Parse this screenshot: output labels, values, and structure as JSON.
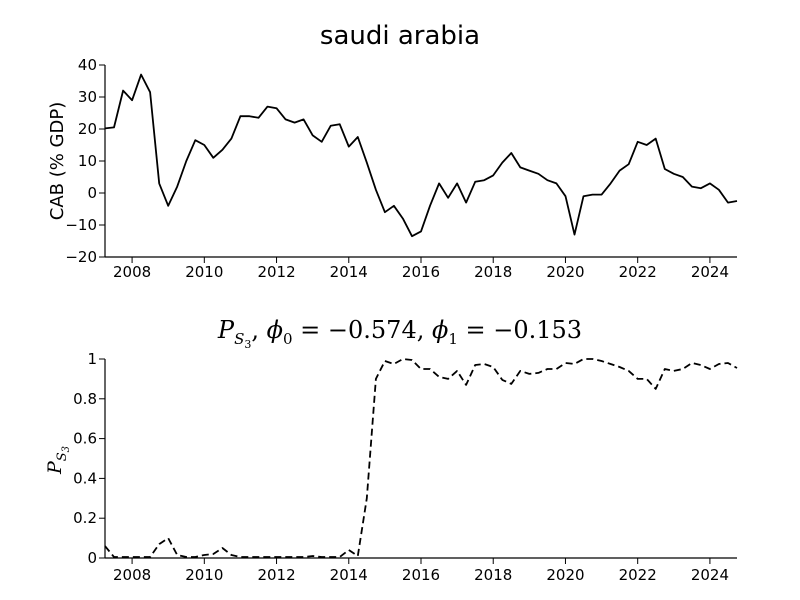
{
  "chart_data": [
    {
      "type": "line",
      "title": "saudi arabia",
      "xlabel": "",
      "ylabel": "CAB (% GDP)",
      "xlim": [
        2007.25,
        2024.75
      ],
      "ylim": [
        -20,
        40
      ],
      "grid": false,
      "x_ticks": [
        2008,
        2010,
        2012,
        2014,
        2016,
        2018,
        2020,
        2022,
        2024
      ],
      "y_ticks": [
        40,
        30,
        20,
        10,
        0,
        -10,
        -20
      ],
      "series": [
        {
          "line_style": "solid",
          "color": "#000000",
          "x": [
            2007.25,
            2007.5,
            2007.75,
            2008.0,
            2008.25,
            2008.5,
            2008.75,
            2009.0,
            2009.25,
            2009.5,
            2009.75,
            2010.0,
            2010.25,
            2010.5,
            2010.75,
            2011.0,
            2011.25,
            2011.5,
            2011.75,
            2012.0,
            2012.25,
            2012.5,
            2012.75,
            2013.0,
            2013.25,
            2013.5,
            2013.75,
            2014.0,
            2014.25,
            2014.5,
            2014.75,
            2015.0,
            2015.25,
            2015.5,
            2015.75,
            2016.0,
            2016.25,
            2016.5,
            2016.75,
            2017.0,
            2017.25,
            2017.5,
            2017.75,
            2018.0,
            2018.25,
            2018.5,
            2018.75,
            2019.0,
            2019.25,
            2019.5,
            2019.75,
            2020.0,
            2020.25,
            2020.5,
            2020.75,
            2021.0,
            2021.25,
            2021.5,
            2021.75,
            2022.0,
            2022.25,
            2022.5,
            2022.75,
            2023.0,
            2023.25,
            2023.5,
            2023.75,
            2024.0,
            2024.25,
            2024.5,
            2024.75
          ],
          "values": [
            20.2,
            20.5,
            32.0,
            29.0,
            37.0,
            31.5,
            3.0,
            -4.0,
            2.0,
            10.0,
            16.5,
            15.0,
            11.0,
            13.5,
            17.0,
            24.0,
            24.0,
            23.5,
            27.0,
            26.5,
            23.0,
            22.0,
            23.0,
            18.0,
            16.0,
            21.0,
            21.5,
            14.5,
            17.5,
            9.5,
            1.0,
            -6.0,
            -4.0,
            -8.0,
            -13.5,
            -12.0,
            -4.0,
            3.0,
            -1.5,
            3.0,
            -3.0,
            3.5,
            4.0,
            5.5,
            9.5,
            12.5,
            8.0,
            7.0,
            6.0,
            4.0,
            3.0,
            -1.0,
            -13.0,
            -1.0,
            -0.5,
            -0.5,
            3.0,
            7.0,
            9.0,
            16.0,
            15.0,
            17.0,
            7.5,
            6.0,
            5.0,
            2.0,
            1.5,
            3.0,
            1.0,
            -3.0,
            -2.5
          ]
        }
      ]
    },
    {
      "type": "line",
      "title": "P_{S_3}, φ_0 = −0.574, φ_1 = −0.153",
      "xlabel": "",
      "ylabel": "P_{S_3}",
      "xlim": [
        2007.25,
        2024.75
      ],
      "ylim": [
        0,
        1
      ],
      "grid": false,
      "x_ticks": [
        2008,
        2010,
        2012,
        2014,
        2016,
        2018,
        2020,
        2022,
        2024
      ],
      "y_ticks": [
        1,
        0.8,
        0.6,
        0.4,
        0.2,
        0
      ],
      "series": [
        {
          "line_style": "dashed",
          "color": "#000000",
          "x": [
            2007.25,
            2007.5,
            2007.75,
            2008.0,
            2008.25,
            2008.5,
            2008.75,
            2009.0,
            2009.25,
            2009.5,
            2009.75,
            2010.0,
            2010.25,
            2010.5,
            2010.75,
            2011.0,
            2011.25,
            2011.5,
            2011.75,
            2012.0,
            2012.25,
            2012.5,
            2012.75,
            2013.0,
            2013.25,
            2013.5,
            2013.75,
            2014.0,
            2014.25,
            2014.5,
            2014.75,
            2015.0,
            2015.25,
            2015.5,
            2015.75,
            2016.0,
            2016.25,
            2016.5,
            2016.75,
            2017.0,
            2017.25,
            2017.5,
            2017.75,
            2018.0,
            2018.25,
            2018.5,
            2018.75,
            2019.0,
            2019.25,
            2019.5,
            2019.75,
            2020.0,
            2020.25,
            2020.5,
            2020.75,
            2021.0,
            2021.25,
            2021.5,
            2021.75,
            2022.0,
            2022.25,
            2022.5,
            2022.75,
            2023.0,
            2023.25,
            2023.5,
            2023.75,
            2024.0,
            2024.25,
            2024.5,
            2024.75
          ],
          "values": [
            0.06,
            0.005,
            0.005,
            0.005,
            0.005,
            0.005,
            0.07,
            0.1,
            0.015,
            0.005,
            0.005,
            0.015,
            0.02,
            0.05,
            0.015,
            0.005,
            0.005,
            0.005,
            0.005,
            0.005,
            0.005,
            0.005,
            0.005,
            0.01,
            0.005,
            0.005,
            0.005,
            0.04,
            0.01,
            0.3,
            0.9,
            0.99,
            0.975,
            1.0,
            0.995,
            0.95,
            0.95,
            0.91,
            0.9,
            0.94,
            0.87,
            0.97,
            0.975,
            0.96,
            0.895,
            0.875,
            0.94,
            0.925,
            0.93,
            0.95,
            0.95,
            0.98,
            0.975,
            1.0,
            1.0,
            0.99,
            0.975,
            0.96,
            0.94,
            0.9,
            0.9,
            0.85,
            0.95,
            0.94,
            0.95,
            0.98,
            0.97,
            0.95,
            0.975,
            0.98,
            0.955
          ]
        }
      ]
    }
  ]
}
